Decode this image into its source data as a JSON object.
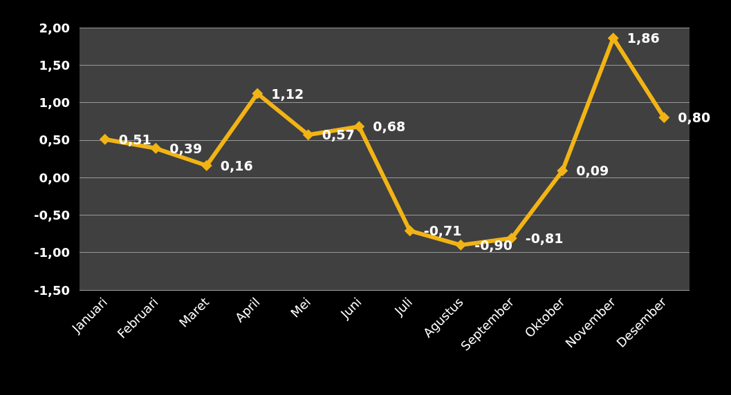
{
  "chart_data": {
    "type": "line",
    "categories": [
      "Januari",
      "Februari",
      "Maret",
      "April",
      "Mei",
      "Juni",
      "Juli",
      "Agustus",
      "September",
      "Oktober",
      "November",
      "Desember"
    ],
    "series": [
      {
        "color": "#f2b415",
        "values": [
          0.51,
          0.39,
          0.16,
          1.12,
          0.57,
          0.68,
          -0.71,
          -0.9,
          -0.81,
          0.09,
          1.86,
          0.8
        ],
        "value_labels": [
          "0,51",
          "0,39",
          "0,16",
          "1,12",
          "0,57",
          "0,68",
          "-0,71",
          "-0,90",
          "-0,81",
          "0,09",
          "1,86",
          "0,80"
        ]
      }
    ],
    "ylim": [
      -1.5,
      2
    ],
    "yticks": [
      {
        "value": -1.5,
        "label": "-1,50"
      },
      {
        "value": -1,
        "label": "-1,00"
      },
      {
        "value": -0.5,
        "label": "-0,50"
      },
      {
        "value": 0,
        "label": "0,00"
      },
      {
        "value": 0.5,
        "label": "0,50"
      },
      {
        "value": 1,
        "label": "1,00"
      },
      {
        "value": 1.5,
        "label": "1,50"
      },
      {
        "value": 2,
        "label": "2,00"
      }
    ],
    "grid": "y",
    "marker": "diamond",
    "line_style": "solid"
  }
}
